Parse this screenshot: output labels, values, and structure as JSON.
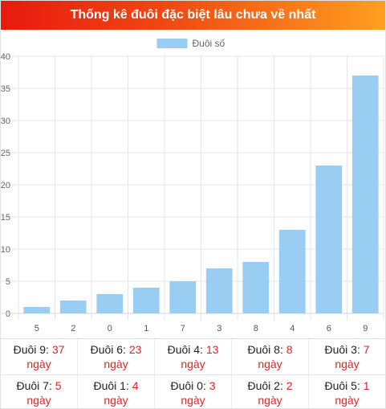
{
  "header": {
    "title": "Thống kê đuôi đặc biệt lâu chưa về nhất"
  },
  "chart_data": {
    "type": "bar",
    "categories": [
      "5",
      "2",
      "0",
      "1",
      "7",
      "3",
      "8",
      "4",
      "6",
      "9"
    ],
    "series": [
      {
        "name": "Đuôi số",
        "values": [
          1,
          2,
          3,
          4,
          5,
          7,
          8,
          13,
          23,
          37
        ]
      }
    ],
    "title": "",
    "xlabel": "",
    "ylabel": "",
    "ylim": [
      0,
      40
    ],
    "yticks": [
      "0",
      "5",
      "10",
      "15",
      "20",
      "25",
      "30",
      "35",
      "40"
    ],
    "grid": true,
    "legend_position": "top-center",
    "bar_color": "#9acdf2"
  },
  "stats": {
    "rows": [
      [
        {
          "label": "Đuôi 9:",
          "value": "37",
          "unit": "ngày"
        },
        {
          "label": "Đuôi 6:",
          "value": "23",
          "unit": "ngày"
        },
        {
          "label": "Đuôi 4:",
          "value": "13",
          "unit": "ngày"
        },
        {
          "label": "Đuôi 8:",
          "value": "8",
          "unit": "ngày"
        },
        {
          "label": "Đuôi 3:",
          "value": "7",
          "unit": "ngày"
        }
      ],
      [
        {
          "label": "Đuôi 7:",
          "value": "5",
          "unit": "ngày"
        },
        {
          "label": "Đuôi 1:",
          "value": "4",
          "unit": "ngày"
        },
        {
          "label": "Đuôi 0:",
          "value": "3",
          "unit": "ngày"
        },
        {
          "label": "Đuôi 2:",
          "value": "2",
          "unit": "ngày"
        },
        {
          "label": "Đuôi 5:",
          "value": "1",
          "unit": "ngày"
        }
      ]
    ]
  }
}
